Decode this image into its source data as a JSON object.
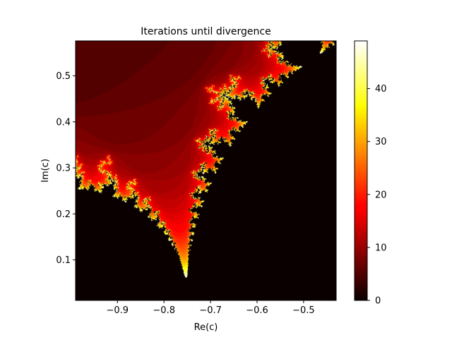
{
  "chart_data": {
    "type": "heatmap",
    "title": "Iterations until divergence",
    "xlabel": "Re(c)",
    "ylabel": "Im(c)",
    "xlim": [
      -0.99,
      -0.43
    ],
    "ylim": [
      0.012,
      0.576
    ],
    "x_ticks": [
      -0.9,
      -0.8,
      -0.7,
      -0.6,
      -0.5
    ],
    "x_tick_labels": [
      "−0.9",
      "−0.8",
      "−0.7",
      "−0.6",
      "−0.5"
    ],
    "y_ticks": [
      0.1,
      0.2,
      0.3,
      0.4,
      0.5
    ],
    "y_tick_labels": [
      "0.1",
      "0.2",
      "0.3",
      "0.4",
      "0.5"
    ],
    "colorbar": {
      "range": [
        0,
        49
      ],
      "ticks": [
        0,
        10,
        20,
        30,
        40
      ],
      "tick_labels": [
        "0",
        "10",
        "20",
        "30",
        "40"
      ],
      "colormap": "hot"
    },
    "value_description": "Escape-time iteration count for the Mandelbrot set, max 50 iterations",
    "max_iterations": 50,
    "grid": false
  }
}
